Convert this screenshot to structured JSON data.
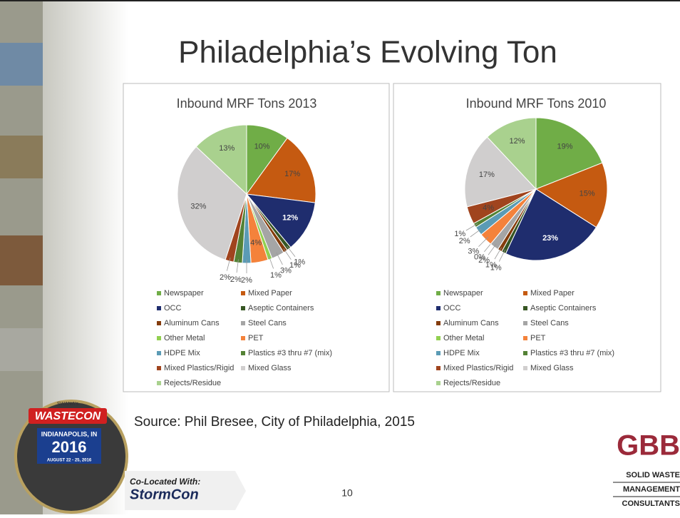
{
  "slide": {
    "title": "Philadelphia’s Evolving Ton",
    "source": "Source:  Phil Bresee, City of Philadelphia, 2015",
    "page_number": "10"
  },
  "logos": {
    "wastecon": {
      "tagline": "SWANA's",
      "name": "WASTECON",
      "city": "INDIANAPOLIS, IN",
      "year": "2016",
      "dates": "AUGUST 22 - 25, 2016",
      "colocated": "Co-Located With:",
      "partner": "StormCon"
    },
    "gbb": {
      "name": "GBB",
      "line1": "SOLID WASTE",
      "line2": "MANAGEMENT",
      "line3": "CONSULTANTS"
    }
  },
  "chart_data": [
    {
      "type": "pie",
      "title": "Inbound MRF Tons 2013",
      "categories": [
        "Newspaper",
        "Mixed Paper",
        "OCC",
        "Aseptic Containers",
        "Aluminum Cans",
        "Steel Cans",
        "Other Metal",
        "PET",
        "HDPE Mix",
        "Plastics #3 thru #7 (mix)",
        "Mixed Plastics/Rigid",
        "Mixed Glass",
        "Rejects/Residue"
      ],
      "values": [
        10,
        17,
        12,
        1,
        1,
        3,
        1,
        4,
        2,
        2,
        2,
        32,
        13
      ],
      "value_labels": [
        "10%",
        "17%",
        "12%",
        "1%",
        "1%",
        "3%",
        "1%",
        "4%",
        "2%",
        "2%",
        "2%",
        "32%",
        "13%"
      ],
      "colors": [
        "#70ad47",
        "#c55a11",
        "#1f2d6e",
        "#375623",
        "#843c0c",
        "#a5a5a5",
        "#92d050",
        "#f4823b",
        "#5b9bb5",
        "#548235",
        "#a0441e",
        "#d0cece",
        "#a9d18e"
      ]
    },
    {
      "type": "pie",
      "title": "Inbound MRF Tons 2010",
      "categories": [
        "Newspaper",
        "Mixed Paper",
        "OCC",
        "Aseptic Containers",
        "Aluminum Cans",
        "Steel Cans",
        "Other Metal",
        "PET",
        "HDPE Mix",
        "Plastics #3 thru #7 (mix)",
        "Mixed Plastics/Rigid",
        "Mixed Glass",
        "Rejects/Residue"
      ],
      "values": [
        19,
        15,
        23,
        1,
        1,
        2,
        0,
        3,
        2,
        1,
        4,
        17,
        12
      ],
      "value_labels": [
        "19%",
        "15%",
        "23%",
        "1%",
        "1%",
        "2%",
        "0%",
        "3%",
        "2%",
        "1%",
        "4%",
        "17%",
        "12%"
      ],
      "colors": [
        "#70ad47",
        "#c55a11",
        "#1f2d6e",
        "#375623",
        "#843c0c",
        "#a5a5a5",
        "#92d050",
        "#f4823b",
        "#5b9bb5",
        "#548235",
        "#a0441e",
        "#d0cece",
        "#a9d18e"
      ]
    }
  ]
}
